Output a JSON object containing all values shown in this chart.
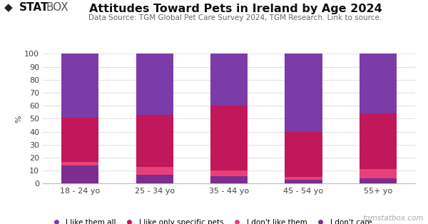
{
  "categories": [
    "18 - 24 yo",
    "25 - 34 yo",
    "35 - 44 yo",
    "45 - 54 yo",
    "55+ yo"
  ],
  "title": "Attitudes Toward Pets in Ireland by Age 2024",
  "subtitle": "Data Source: TGM Global Pet Care Survey 2024, TGM Research. Link to source.",
  "ylabel": "%",
  "ylim": [
    0,
    100
  ],
  "yticks": [
    0,
    10,
    20,
    30,
    40,
    50,
    60,
    70,
    80,
    90,
    100
  ],
  "series": {
    "dont_care": [
      14,
      7,
      6,
      3,
      4
    ],
    "dont_like": [
      3,
      6,
      4,
      2,
      7
    ],
    "like_specific": [
      34,
      40,
      50,
      35,
      43
    ],
    "like_all": [
      49,
      47,
      40,
      60,
      46
    ]
  },
  "color_like_all": "#7B3BA8",
  "color_like_specific": "#C0185A",
  "color_dont_like": "#E8407A",
  "color_dont_care": "#7B2D90",
  "bar_width": 0.5,
  "background_color": "#ffffff",
  "grid_color": "#e0e0e0",
  "title_fontsize": 11.5,
  "subtitle_fontsize": 7.5,
  "tick_fontsize": 8,
  "legend_fontsize": 7.5,
  "ylabel_fontsize": 8,
  "watermark": "tgmstatbox.com"
}
